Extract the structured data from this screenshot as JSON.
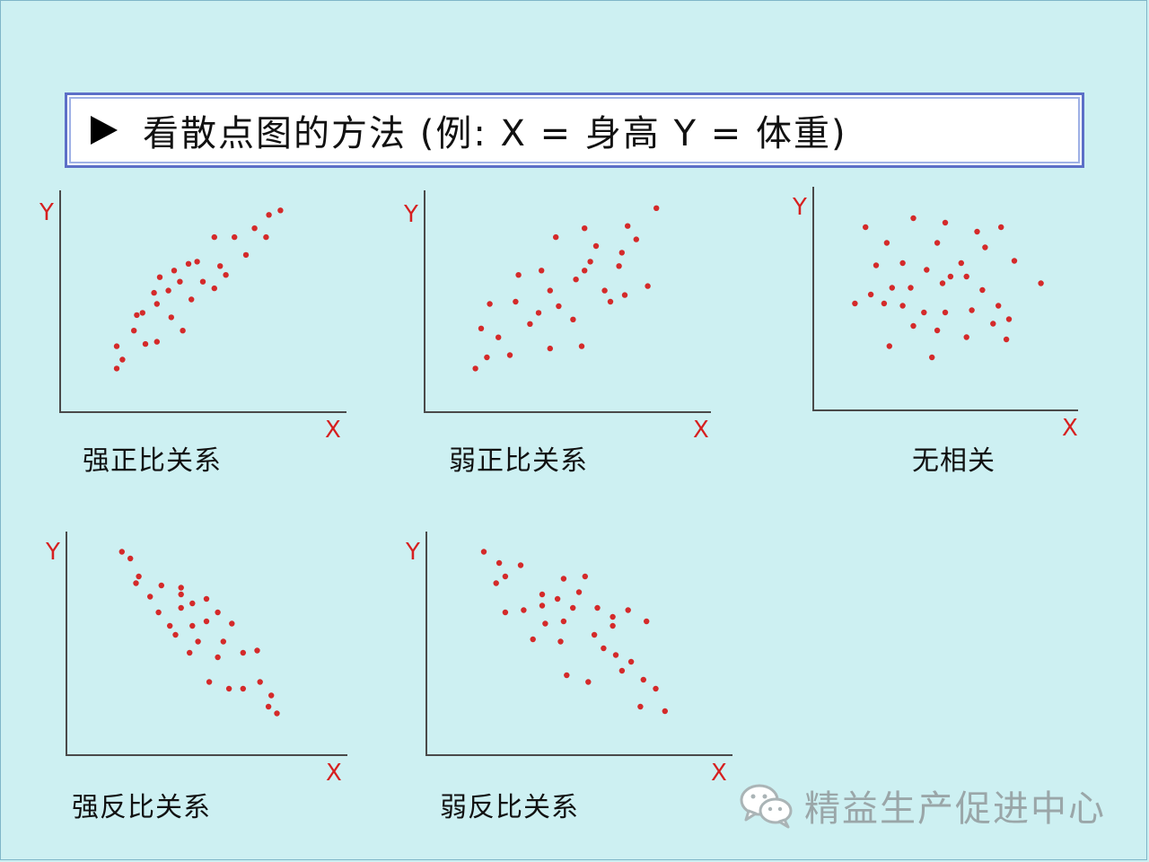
{
  "title": "看散点图的方法 (例: X = 身高 Y = 体重)",
  "axis": {
    "x": "X",
    "y": "Y"
  },
  "colors": {
    "dot": "#d42a2a",
    "axis": "#4a4a4a",
    "title_border": "#5c6fc7"
  },
  "panels": [
    {
      "id": "strong-positive",
      "caption": "强正比关系",
      "points": [
        [
          0.2,
          0.2
        ],
        [
          0.22,
          0.24
        ],
        [
          0.2,
          0.3
        ],
        [
          0.26,
          0.37
        ],
        [
          0.3,
          0.31
        ],
        [
          0.34,
          0.32
        ],
        [
          0.27,
          0.44
        ],
        [
          0.29,
          0.45
        ],
        [
          0.34,
          0.49
        ],
        [
          0.33,
          0.54
        ],
        [
          0.39,
          0.43
        ],
        [
          0.43,
          0.37
        ],
        [
          0.38,
          0.55
        ],
        [
          0.35,
          0.61
        ],
        [
          0.4,
          0.64
        ],
        [
          0.42,
          0.59
        ],
        [
          0.45,
          0.67
        ],
        [
          0.48,
          0.68
        ],
        [
          0.46,
          0.51
        ],
        [
          0.5,
          0.59
        ],
        [
          0.54,
          0.56
        ],
        [
          0.56,
          0.66
        ],
        [
          0.58,
          0.62
        ],
        [
          0.54,
          0.79
        ],
        [
          0.61,
          0.79
        ],
        [
          0.65,
          0.71
        ],
        [
          0.68,
          0.83
        ],
        [
          0.72,
          0.79
        ],
        [
          0.73,
          0.89
        ],
        [
          0.77,
          0.91
        ]
      ]
    },
    {
      "id": "weak-positive",
      "caption": "弱正比关系",
      "points": [
        [
          0.18,
          0.2
        ],
        [
          0.22,
          0.25
        ],
        [
          0.3,
          0.26
        ],
        [
          0.26,
          0.34
        ],
        [
          0.2,
          0.38
        ],
        [
          0.23,
          0.49
        ],
        [
          0.32,
          0.5
        ],
        [
          0.33,
          0.62
        ],
        [
          0.4,
          0.45
        ],
        [
          0.37,
          0.4
        ],
        [
          0.44,
          0.55
        ],
        [
          0.47,
          0.48
        ],
        [
          0.41,
          0.64
        ],
        [
          0.46,
          0.79
        ],
        [
          0.56,
          0.83
        ],
        [
          0.6,
          0.75
        ],
        [
          0.56,
          0.64
        ],
        [
          0.58,
          0.68
        ],
        [
          0.53,
          0.6
        ],
        [
          0.52,
          0.42
        ],
        [
          0.44,
          0.29
        ],
        [
          0.55,
          0.3
        ],
        [
          0.65,
          0.5
        ],
        [
          0.63,
          0.55
        ],
        [
          0.7,
          0.53
        ],
        [
          0.68,
          0.66
        ],
        [
          0.69,
          0.72
        ],
        [
          0.74,
          0.78
        ],
        [
          0.71,
          0.84
        ],
        [
          0.78,
          0.57
        ],
        [
          0.81,
          0.92
        ]
      ]
    },
    {
      "id": "no-correlation",
      "caption": "无相关",
      "points": [
        [
          0.2,
          0.82
        ],
        [
          0.28,
          0.75
        ],
        [
          0.38,
          0.86
        ],
        [
          0.5,
          0.84
        ],
        [
          0.62,
          0.8
        ],
        [
          0.71,
          0.82
        ],
        [
          0.24,
          0.65
        ],
        [
          0.34,
          0.66
        ],
        [
          0.47,
          0.75
        ],
        [
          0.56,
          0.66
        ],
        [
          0.65,
          0.73
        ],
        [
          0.76,
          0.67
        ],
        [
          0.22,
          0.52
        ],
        [
          0.3,
          0.55
        ],
        [
          0.37,
          0.55
        ],
        [
          0.43,
          0.63
        ],
        [
          0.49,
          0.57
        ],
        [
          0.52,
          0.6
        ],
        [
          0.58,
          0.6
        ],
        [
          0.64,
          0.54
        ],
        [
          0.7,
          0.47
        ],
        [
          0.16,
          0.48
        ],
        [
          0.27,
          0.48
        ],
        [
          0.34,
          0.47
        ],
        [
          0.42,
          0.44
        ],
        [
          0.5,
          0.44
        ],
        [
          0.6,
          0.45
        ],
        [
          0.68,
          0.39
        ],
        [
          0.74,
          0.41
        ],
        [
          0.86,
          0.57
        ],
        [
          0.38,
          0.38
        ],
        [
          0.47,
          0.36
        ],
        [
          0.58,
          0.33
        ],
        [
          0.73,
          0.32
        ],
        [
          0.29,
          0.29
        ],
        [
          0.45,
          0.24
        ]
      ]
    },
    {
      "id": "strong-negative",
      "caption": "强反比关系",
      "points": [
        [
          0.2,
          0.91
        ],
        [
          0.23,
          0.88
        ],
        [
          0.26,
          0.8
        ],
        [
          0.25,
          0.77
        ],
        [
          0.3,
          0.71
        ],
        [
          0.34,
          0.76
        ],
        [
          0.41,
          0.75
        ],
        [
          0.41,
          0.72
        ],
        [
          0.41,
          0.66
        ],
        [
          0.45,
          0.68
        ],
        [
          0.5,
          0.7
        ],
        [
          0.54,
          0.64
        ],
        [
          0.59,
          0.59
        ],
        [
          0.33,
          0.64
        ],
        [
          0.37,
          0.58
        ],
        [
          0.45,
          0.58
        ],
        [
          0.5,
          0.6
        ],
        [
          0.39,
          0.54
        ],
        [
          0.47,
          0.51
        ],
        [
          0.56,
          0.51
        ],
        [
          0.63,
          0.46
        ],
        [
          0.68,
          0.47
        ],
        [
          0.44,
          0.46
        ],
        [
          0.54,
          0.44
        ],
        [
          0.51,
          0.33
        ],
        [
          0.58,
          0.3
        ],
        [
          0.63,
          0.3
        ],
        [
          0.69,
          0.33
        ],
        [
          0.73,
          0.27
        ],
        [
          0.72,
          0.22
        ],
        [
          0.75,
          0.19
        ]
      ]
    },
    {
      "id": "weak-negative",
      "caption": "弱反比关系",
      "points": [
        [
          0.19,
          0.91
        ],
        [
          0.24,
          0.86
        ],
        [
          0.31,
          0.85
        ],
        [
          0.23,
          0.77
        ],
        [
          0.26,
          0.8
        ],
        [
          0.38,
          0.72
        ],
        [
          0.45,
          0.79
        ],
        [
          0.52,
          0.8
        ],
        [
          0.5,
          0.73
        ],
        [
          0.43,
          0.7
        ],
        [
          0.38,
          0.67
        ],
        [
          0.26,
          0.64
        ],
        [
          0.32,
          0.65
        ],
        [
          0.39,
          0.59
        ],
        [
          0.45,
          0.6
        ],
        [
          0.48,
          0.66
        ],
        [
          0.56,
          0.66
        ],
        [
          0.61,
          0.62
        ],
        [
          0.66,
          0.65
        ],
        [
          0.61,
          0.58
        ],
        [
          0.72,
          0.6
        ],
        [
          0.35,
          0.52
        ],
        [
          0.44,
          0.51
        ],
        [
          0.55,
          0.54
        ],
        [
          0.58,
          0.48
        ],
        [
          0.62,
          0.45
        ],
        [
          0.67,
          0.42
        ],
        [
          0.64,
          0.38
        ],
        [
          0.71,
          0.34
        ],
        [
          0.75,
          0.3
        ],
        [
          0.46,
          0.36
        ],
        [
          0.53,
          0.33
        ],
        [
          0.7,
          0.22
        ],
        [
          0.78,
          0.2
        ]
      ]
    }
  ],
  "watermark": {
    "text": "精益生产促进中心",
    "icon": "wechat-icon"
  }
}
